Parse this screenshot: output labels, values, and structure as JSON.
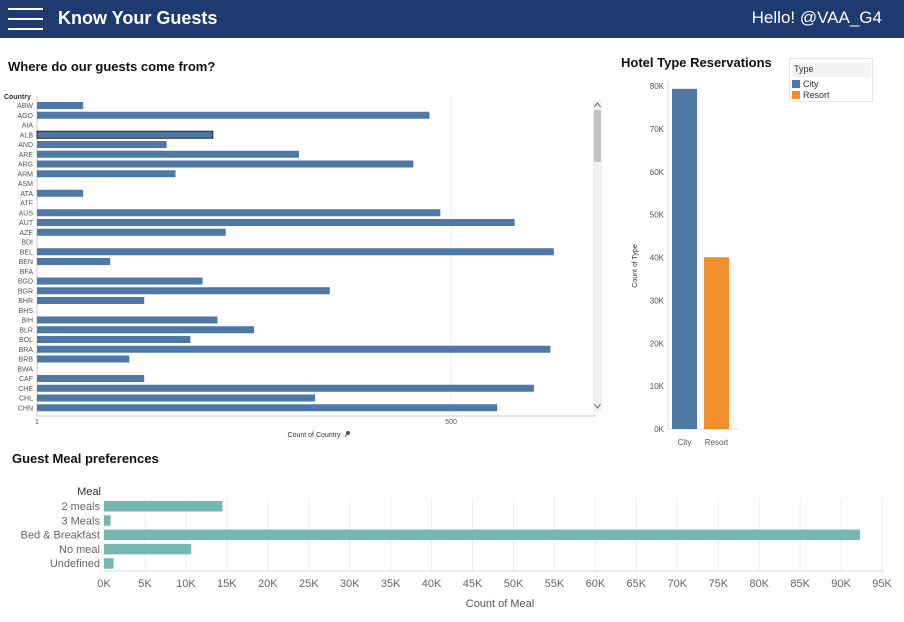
{
  "header": {
    "title": "Know Your Guests",
    "greeting": "Hello! @VAA_G4"
  },
  "country_chart": {
    "title": "Where do our guests come from?",
    "ylabel": "Country",
    "xlabel": "Count of Country",
    "pin_icon": "pin-icon",
    "scroll_up_icon": "chevron-up-icon",
    "scroll_down_icon": "chevron-down-icon"
  },
  "hotel_chart": {
    "title": "Hotel Type Reservations",
    "ylabel": "Count of Type",
    "legend_title": "Type"
  },
  "meal_chart": {
    "title": "Guest Meal preferences",
    "ylabel": "Meal",
    "xlabel": "Count of Meal"
  },
  "chart_data": [
    {
      "id": "country",
      "type": "bar",
      "orientation": "horizontal",
      "scale": "log",
      "xlabel": "Count of Country",
      "ylabel": "Country",
      "x_ticks": [
        1,
        500
      ],
      "xlim": [
        1,
        3000
      ],
      "color": "#4e79a7",
      "categories": [
        "ABW",
        "AGO",
        "AIA",
        "ALB",
        "AND",
        "ARE",
        "ARG",
        "ARM",
        "ASM",
        "ATA",
        "ATF",
        "AUS",
        "AUT",
        "AZE",
        "BDI",
        "BEL",
        "BEN",
        "BFA",
        "BGD",
        "BGR",
        "BHR",
        "BHS",
        "BIH",
        "BLR",
        "BOL",
        "BRA",
        "BRB",
        "BWA",
        "CAF",
        "CHE",
        "CHL",
        "CHN"
      ],
      "values": [
        2,
        362,
        1,
        14,
        7,
        51,
        284,
        8,
        1,
        2,
        1,
        426,
        1300,
        17,
        1,
        2342,
        3,
        1,
        12,
        81,
        5,
        1,
        15,
        26,
        10,
        2224,
        4,
        1,
        5,
        1736,
        65,
        1000
      ],
      "grid": false
    },
    {
      "id": "hotel_type",
      "type": "bar",
      "orientation": "vertical",
      "ylabel": "Count of Type",
      "categories": [
        "City",
        "Resort"
      ],
      "values": [
        79330,
        40060
      ],
      "colors": [
        "#4e79a7",
        "#f28e2b"
      ],
      "y_ticks": [
        "0K",
        "10K",
        "20K",
        "30K",
        "40K",
        "50K",
        "60K",
        "70K",
        "80K"
      ],
      "ylim": [
        0,
        80000
      ],
      "legend": {
        "title": "Type",
        "entries": [
          "City",
          "Resort"
        ],
        "placement": "top-right"
      }
    },
    {
      "id": "meal",
      "type": "bar",
      "orientation": "horizontal",
      "xlabel": "Count of Meal",
      "ylabel": "Meal",
      "categories": [
        "2 meals",
        "3 Meals",
        "Bed & Breakfast",
        "No meal",
        "Undefined"
      ],
      "values": [
        14463,
        798,
        92310,
        10650,
        1169
      ],
      "color": "#76b7b2",
      "x_ticks": [
        "0K",
        "5K",
        "10K",
        "15K",
        "20K",
        "25K",
        "30K",
        "35K",
        "40K",
        "45K",
        "50K",
        "55K",
        "60K",
        "65K",
        "70K",
        "75K",
        "80K",
        "85K",
        "90K",
        "95K"
      ],
      "xlim": [
        0,
        95000
      ],
      "grid": true
    }
  ]
}
